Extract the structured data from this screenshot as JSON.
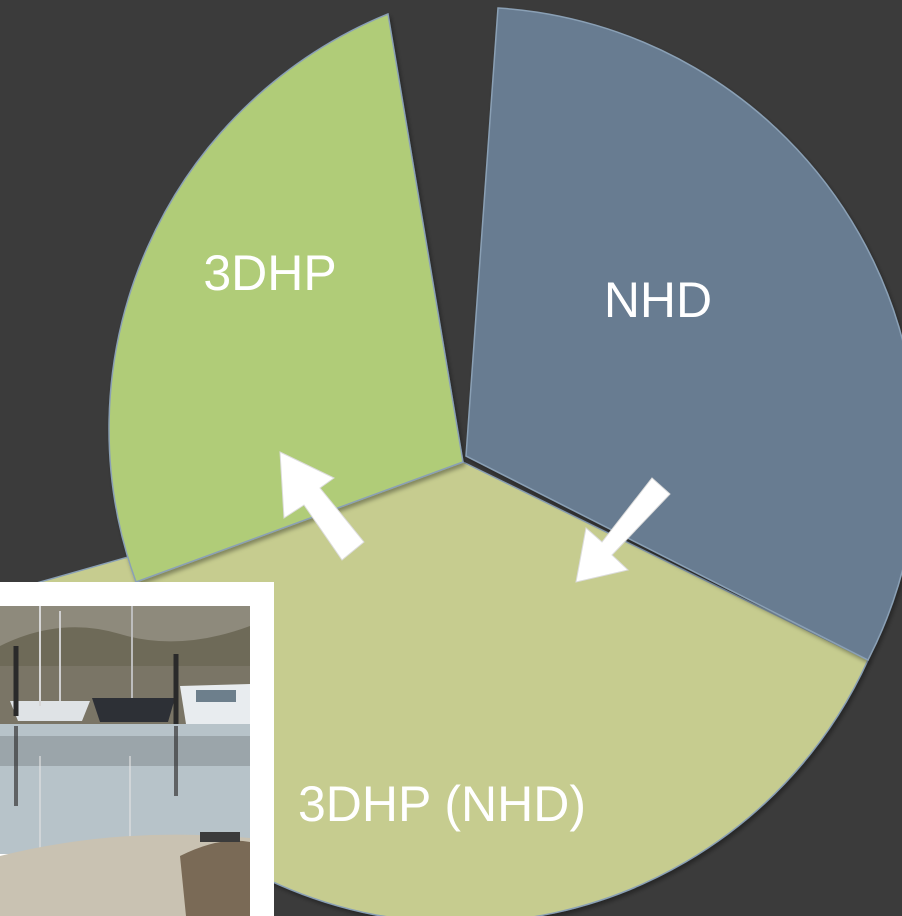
{
  "diagram": {
    "segments": [
      {
        "label": "3DHP",
        "color": "#b0cc78"
      },
      {
        "label": "NHD",
        "color": "#687b91"
      },
      {
        "label": "3DHP (NHD)",
        "color": "#c6cc8f"
      }
    ],
    "background": "#3b3b3b",
    "arrow_color": "#ffffff",
    "arrows": [
      {
        "icon": "arrow-down-left-icon",
        "from": "NHD",
        "to": "3DHP (NHD)"
      },
      {
        "icon": "arrow-up-left-icon",
        "from": "3DHP (NHD)",
        "to": "3DHP"
      }
    ]
  },
  "photo": {
    "icon": "marina-boats-photo"
  }
}
